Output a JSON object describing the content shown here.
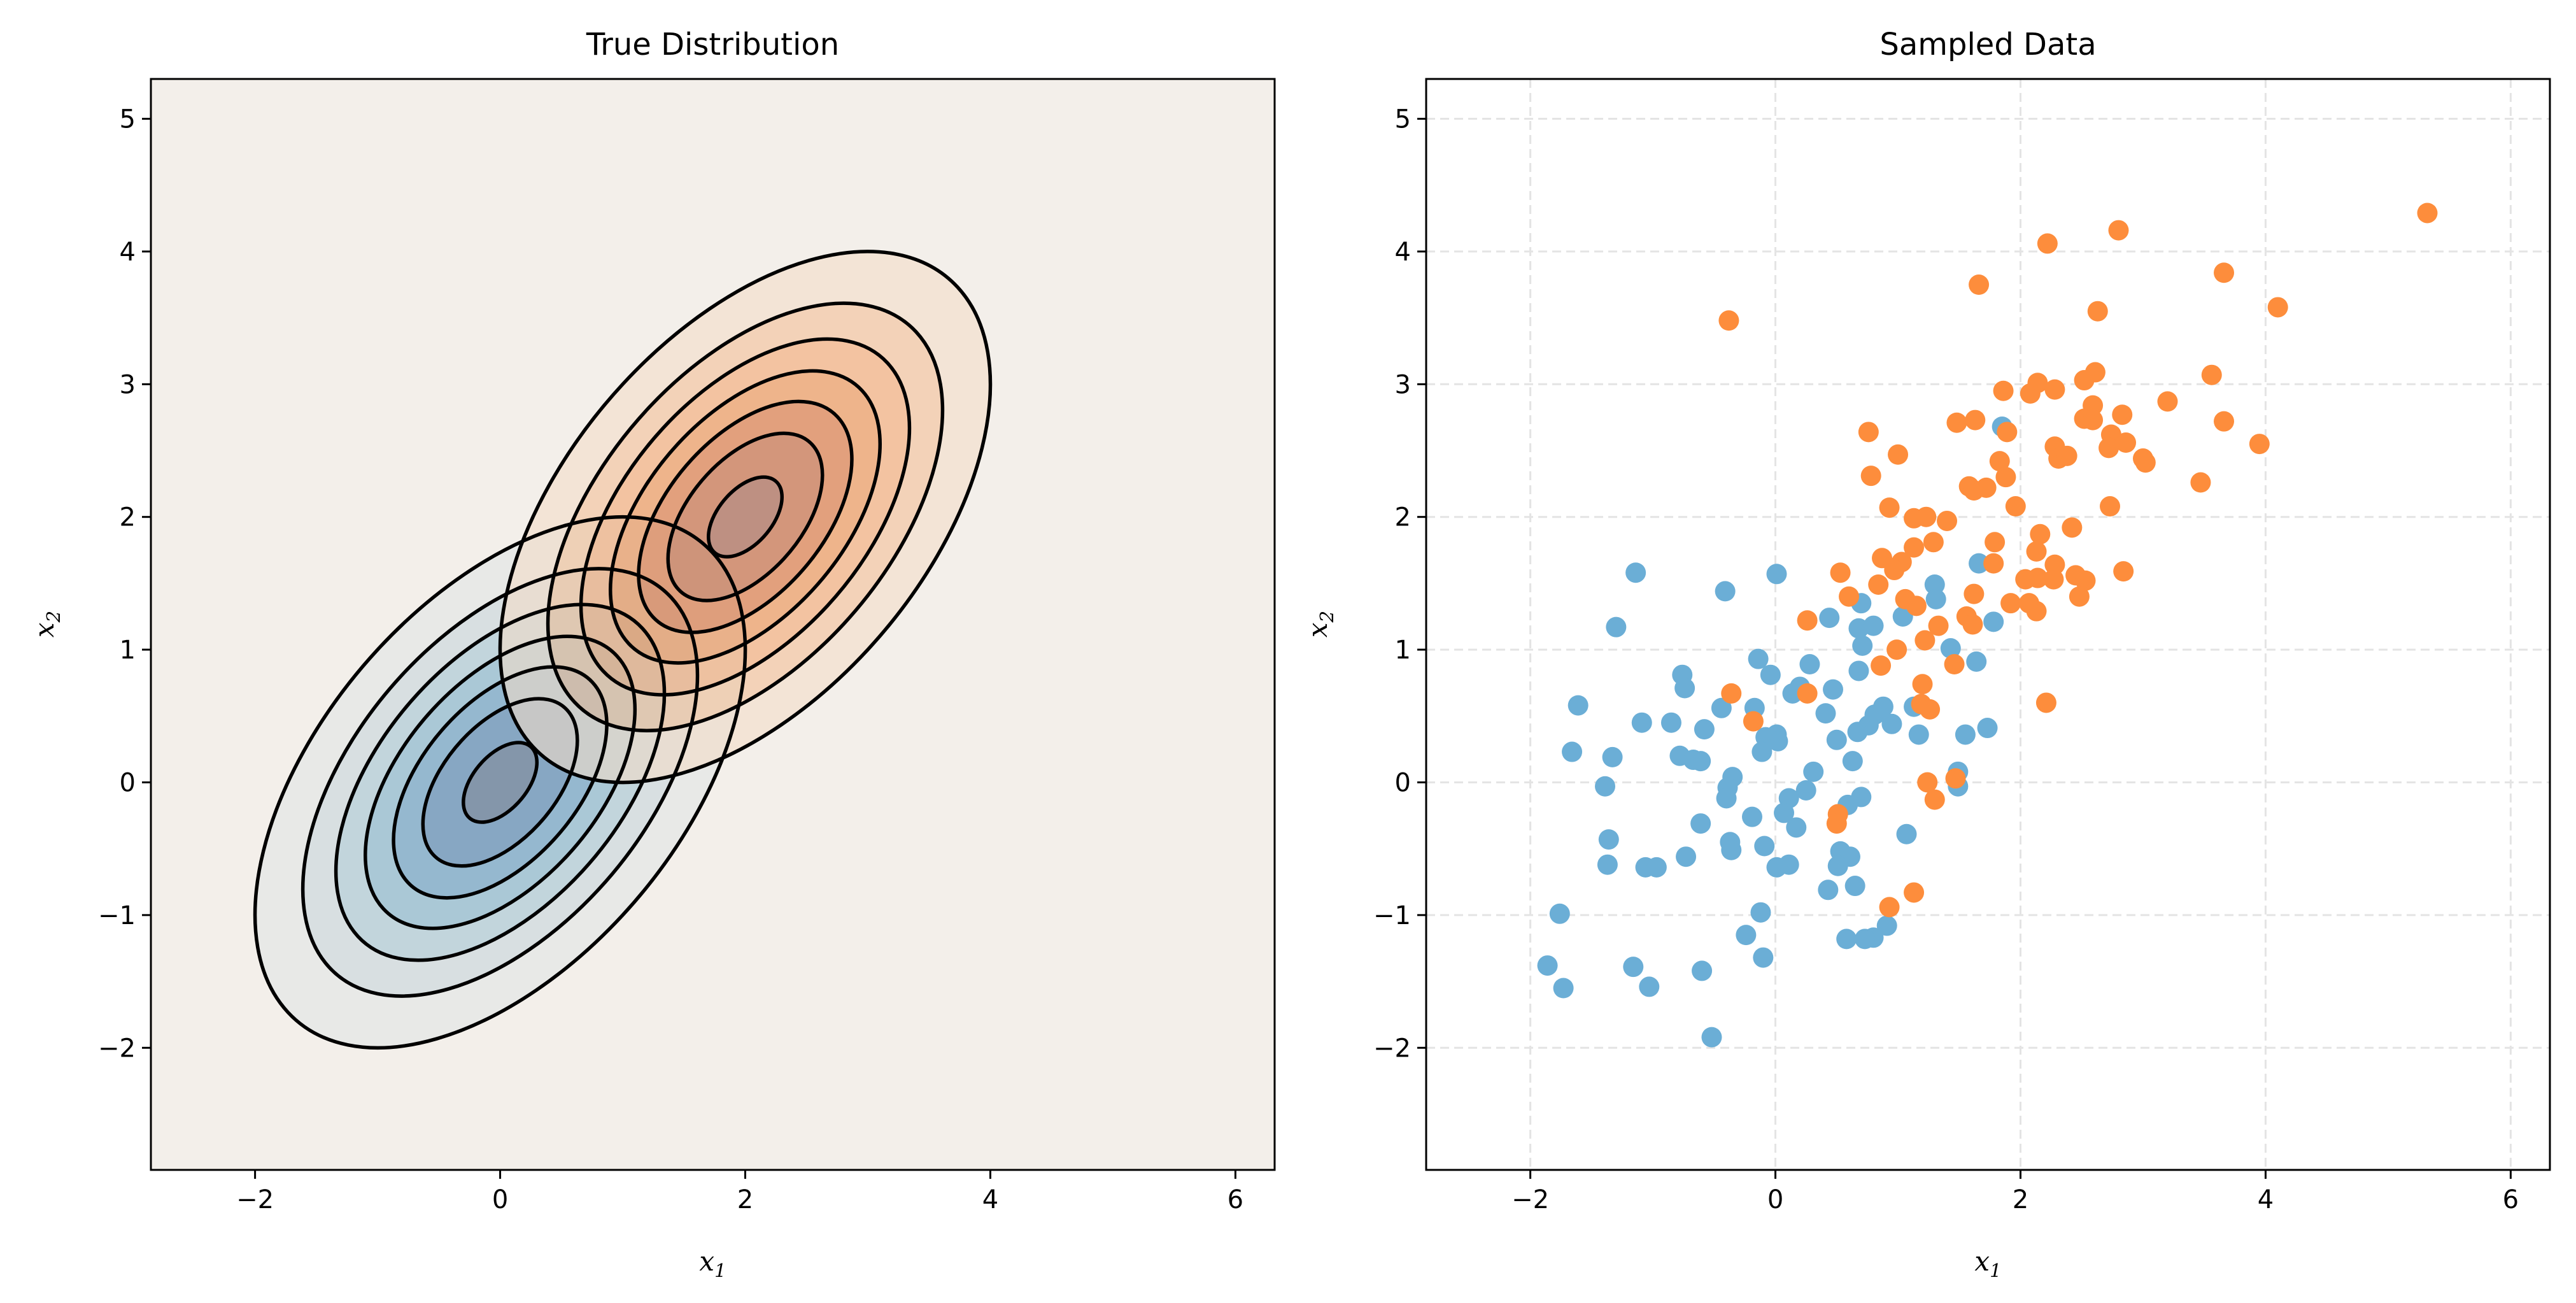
{
  "chart_data": [
    {
      "type": "contour",
      "title": "True Distribution",
      "xlabel": "x",
      "xlabel_sub": "1",
      "ylabel": "x",
      "ylabel_sub": "2",
      "xlim": [
        -2.85,
        6.32
      ],
      "ylim": [
        -2.92,
        5.3
      ],
      "xticks": [
        -2,
        0,
        2,
        4,
        6
      ],
      "xtick_labels": [
        "−2",
        "0",
        "2",
        "4",
        "6"
      ],
      "yticks": [
        -2,
        -1,
        0,
        1,
        2,
        3,
        4,
        5
      ],
      "ytick_labels": [
        "−2",
        "−1",
        "0",
        "1",
        "2",
        "3",
        "4",
        "5"
      ],
      "grid": false,
      "background_color": "#f3efea",
      "components": [
        {
          "name": "blue",
          "mean": [
            0,
            0
          ],
          "cov": [
            [
              1,
              0.5
            ],
            [
              0.5,
              1
            ]
          ],
          "mahalanobis_levels": [
            2.0,
            1.61,
            1.34,
            1.1,
            0.87,
            0.63,
            0.3
          ],
          "fill_colors": [
            "#e8e9e7",
            "#d8dfe1",
            "#c2d5dc",
            "#aac8d6",
            "#95b8cf",
            "#87a7c3",
            "#8496aa"
          ]
        },
        {
          "name": "orange",
          "mean": [
            2,
            2
          ],
          "cov": [
            [
              1,
              0.5
            ],
            [
              0.5,
              1
            ]
          ],
          "mahalanobis_levels": [
            2.0,
            1.61,
            1.34,
            1.1,
            0.87,
            0.63,
            0.3
          ],
          "fill_colors": [
            "#f3ddc9",
            "#f3c097",
            "#f3a772",
            "#eb8d4d",
            "#d86d36",
            "#be5c33",
            "#9c523e"
          ]
        }
      ]
    },
    {
      "type": "scatter",
      "title": "Sampled Data",
      "xlabel": "x",
      "xlabel_sub": "1",
      "ylabel": "x",
      "ylabel_sub": "2",
      "xlim": [
        -2.85,
        6.32
      ],
      "ylim": [
        -2.92,
        5.3
      ],
      "xticks": [
        -2,
        0,
        2,
        4,
        6
      ],
      "xtick_labels": [
        "−2",
        "0",
        "2",
        "4",
        "6"
      ],
      "yticks": [
        -2,
        -1,
        0,
        1,
        2,
        3,
        4,
        5
      ],
      "ytick_labels": [
        "−2",
        "−1",
        "0",
        "1",
        "2",
        "3",
        "4",
        "5"
      ],
      "grid": true,
      "series": [
        {
          "name": "blue",
          "color": "#6baed6",
          "points": [
            [
              1.85,
              2.68
            ],
            [
              -1.14,
              1.58
            ],
            [
              -0.41,
              1.44
            ],
            [
              0.01,
              1.57
            ],
            [
              1.66,
              1.65
            ],
            [
              1.3,
              1.49
            ],
            [
              1.31,
              1.38
            ],
            [
              0.7,
              1.35
            ],
            [
              0.44,
              1.24
            ],
            [
              1.04,
              1.25
            ],
            [
              0.68,
              1.16
            ],
            [
              0.8,
              1.18
            ],
            [
              1.78,
              1.21
            ],
            [
              0.71,
              1.03
            ],
            [
              -1.3,
              1.17
            ],
            [
              1.43,
              1.01
            ],
            [
              1.64,
              0.91
            ],
            [
              -0.14,
              0.93
            ],
            [
              -0.04,
              0.81
            ],
            [
              0.28,
              0.89
            ],
            [
              0.68,
              0.84
            ],
            [
              -0.76,
              0.81
            ],
            [
              -0.74,
              0.71
            ],
            [
              0.14,
              0.67
            ],
            [
              0.2,
              0.72
            ],
            [
              0.47,
              0.7
            ],
            [
              -1.61,
              0.58
            ],
            [
              -0.44,
              0.56
            ],
            [
              -0.17,
              0.56
            ],
            [
              -1.09,
              0.45
            ],
            [
              -0.85,
              0.45
            ],
            [
              -0.58,
              0.4
            ],
            [
              0.41,
              0.52
            ],
            [
              0.88,
              0.57
            ],
            [
              1.13,
              0.57
            ],
            [
              0.81,
              0.51
            ],
            [
              0.76,
              0.43
            ],
            [
              0.95,
              0.44
            ],
            [
              0.01,
              0.36
            ],
            [
              0.02,
              0.31
            ],
            [
              -0.08,
              0.34
            ],
            [
              -0.11,
              0.23
            ],
            [
              0.67,
              0.38
            ],
            [
              0.5,
              0.32
            ],
            [
              1.17,
              0.36
            ],
            [
              1.55,
              0.36
            ],
            [
              1.73,
              0.41
            ],
            [
              -1.66,
              0.23
            ],
            [
              -1.33,
              0.19
            ],
            [
              -0.78,
              0.2
            ],
            [
              -0.67,
              0.17
            ],
            [
              -0.61,
              0.16
            ],
            [
              0.63,
              0.16
            ],
            [
              0.31,
              0.08
            ],
            [
              -0.35,
              0.04
            ],
            [
              -0.39,
              -0.04
            ],
            [
              -0.4,
              -0.12
            ],
            [
              -1.39,
              -0.03
            ],
            [
              0.25,
              -0.06
            ],
            [
              0.11,
              -0.12
            ],
            [
              0.07,
              -0.23
            ],
            [
              0.17,
              -0.34
            ],
            [
              0.7,
              -0.11
            ],
            [
              0.59,
              -0.17
            ],
            [
              1.49,
              0.08
            ],
            [
              1.49,
              -0.03
            ],
            [
              -0.19,
              -0.26
            ],
            [
              -0.61,
              -0.31
            ],
            [
              -1.36,
              -0.43
            ],
            [
              -0.37,
              -0.45
            ],
            [
              -0.36,
              -0.51
            ],
            [
              -0.09,
              -0.48
            ],
            [
              1.07,
              -0.39
            ],
            [
              -1.37,
              -0.62
            ],
            [
              -1.06,
              -0.64
            ],
            [
              -0.97,
              -0.64
            ],
            [
              -0.73,
              -0.56
            ],
            [
              0.01,
              -0.64
            ],
            [
              0.11,
              -0.62
            ],
            [
              0.53,
              -0.52
            ],
            [
              0.61,
              -0.56
            ],
            [
              0.51,
              -0.63
            ],
            [
              0.43,
              -0.81
            ],
            [
              0.65,
              -0.78
            ],
            [
              -0.12,
              -0.98
            ],
            [
              0.91,
              -1.08
            ],
            [
              0.8,
              -1.17
            ],
            [
              0.73,
              -1.18
            ],
            [
              0.58,
              -1.18
            ],
            [
              -0.24,
              -1.15
            ],
            [
              -1.76,
              -0.99
            ],
            [
              -1.86,
              -1.38
            ],
            [
              -1.16,
              -1.39
            ],
            [
              -1.73,
              -1.55
            ],
            [
              -1.03,
              -1.54
            ],
            [
              -0.6,
              -1.42
            ],
            [
              -0.1,
              -1.32
            ],
            [
              -0.52,
              -1.92
            ]
          ]
        },
        {
          "name": "orange",
          "color": "#fd8d3c",
          "points": [
            [
              5.32,
              4.29
            ],
            [
              2.8,
              4.16
            ],
            [
              2.22,
              4.06
            ],
            [
              3.66,
              3.84
            ],
            [
              1.66,
              3.75
            ],
            [
              2.63,
              3.55
            ],
            [
              4.1,
              3.58
            ],
            [
              -0.38,
              3.48
            ],
            [
              2.61,
              3.09
            ],
            [
              2.52,
              3.03
            ],
            [
              2.14,
              3.01
            ],
            [
              2.08,
              2.93
            ],
            [
              2.28,
              2.96
            ],
            [
              1.86,
              2.95
            ],
            [
              3.56,
              3.07
            ],
            [
              3.2,
              2.87
            ],
            [
              2.59,
              2.84
            ],
            [
              2.83,
              2.77
            ],
            [
              2.52,
              2.74
            ],
            [
              2.59,
              2.73
            ],
            [
              1.48,
              2.71
            ],
            [
              1.63,
              2.73
            ],
            [
              3.66,
              2.72
            ],
            [
              1.89,
              2.64
            ],
            [
              0.76,
              2.64
            ],
            [
              2.74,
              2.62
            ],
            [
              1.0,
              2.47
            ],
            [
              2.28,
              2.53
            ],
            [
              2.72,
              2.52
            ],
            [
              2.86,
              2.56
            ],
            [
              2.31,
              2.44
            ],
            [
              2.38,
              2.46
            ],
            [
              3.95,
              2.55
            ],
            [
              3.0,
              2.44
            ],
            [
              3.02,
              2.41
            ],
            [
              1.83,
              2.42
            ],
            [
              0.78,
              2.31
            ],
            [
              1.88,
              2.3
            ],
            [
              3.47,
              2.26
            ],
            [
              1.58,
              2.23
            ],
            [
              1.62,
              2.2
            ],
            [
              1.72,
              2.22
            ],
            [
              0.93,
              2.07
            ],
            [
              1.96,
              2.08
            ],
            [
              2.73,
              2.08
            ],
            [
              1.13,
              1.99
            ],
            [
              1.23,
              2.0
            ],
            [
              1.4,
              1.97
            ],
            [
              2.42,
              1.92
            ],
            [
              2.16,
              1.87
            ],
            [
              1.79,
              1.81
            ],
            [
              1.29,
              1.81
            ],
            [
              1.13,
              1.77
            ],
            [
              2.13,
              1.74
            ],
            [
              0.87,
              1.69
            ],
            [
              1.03,
              1.66
            ],
            [
              0.97,
              1.6
            ],
            [
              1.78,
              1.65
            ],
            [
              0.53,
              1.58
            ],
            [
              0.84,
              1.49
            ],
            [
              2.28,
              1.64
            ],
            [
              2.27,
              1.53
            ],
            [
              2.04,
              1.53
            ],
            [
              2.14,
              1.54
            ],
            [
              2.45,
              1.56
            ],
            [
              2.53,
              1.52
            ],
            [
              2.84,
              1.59
            ],
            [
              1.62,
              1.42
            ],
            [
              2.48,
              1.4
            ],
            [
              0.6,
              1.4
            ],
            [
              1.06,
              1.38
            ],
            [
              1.15,
              1.33
            ],
            [
              1.92,
              1.35
            ],
            [
              2.07,
              1.35
            ],
            [
              2.13,
              1.29
            ],
            [
              1.56,
              1.25
            ],
            [
              1.61,
              1.19
            ],
            [
              0.26,
              1.22
            ],
            [
              1.33,
              1.18
            ],
            [
              1.22,
              1.07
            ],
            [
              0.99,
              1.0
            ],
            [
              1.46,
              0.89
            ],
            [
              0.86,
              0.88
            ],
            [
              1.2,
              0.74
            ],
            [
              2.21,
              0.6
            ],
            [
              -0.36,
              0.67
            ],
            [
              0.26,
              0.67
            ],
            [
              1.19,
              0.59
            ],
            [
              1.26,
              0.55
            ],
            [
              -0.18,
              0.46
            ],
            [
              1.24,
              0.0
            ],
            [
              1.47,
              0.03
            ],
            [
              1.3,
              -0.13
            ],
            [
              0.51,
              -0.24
            ],
            [
              0.5,
              -0.31
            ],
            [
              1.13,
              -0.83
            ],
            [
              0.93,
              -0.94
            ]
          ]
        }
      ]
    }
  ]
}
